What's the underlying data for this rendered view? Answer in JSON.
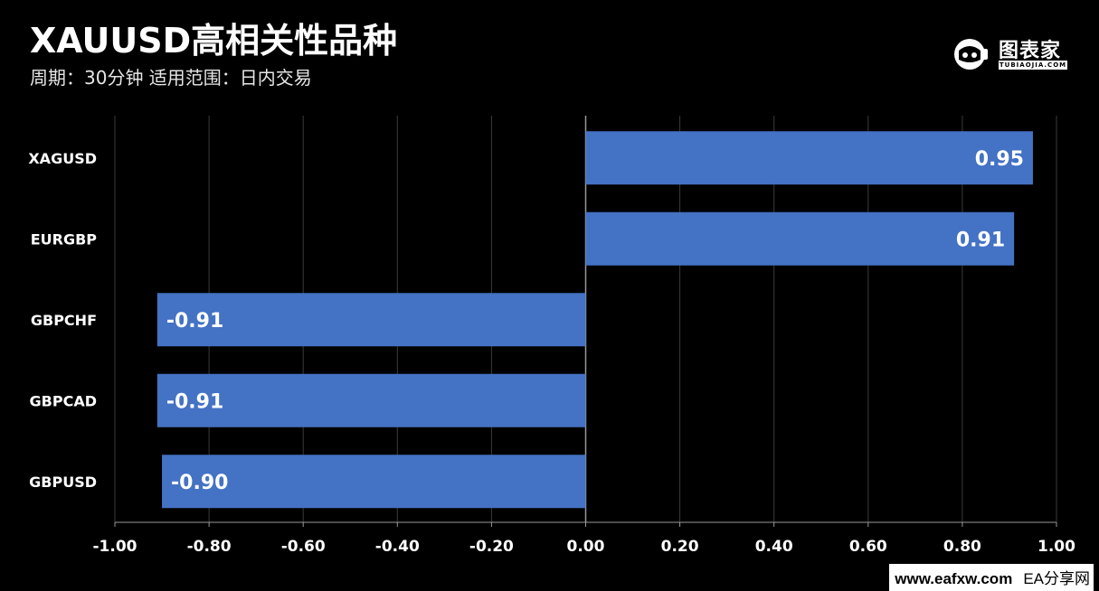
{
  "header": {
    "title": "XAUUSD高相关性品种",
    "subtitle": "周期：30分钟  适用范围：日内交易"
  },
  "logo": {
    "name": "图表家",
    "sub": "TUBIAOJIA.COM",
    "icon": "astronaut-icon"
  },
  "footer": {
    "site": "www.eafxw.com",
    "brand": "EA分享网"
  },
  "colors": {
    "background": "#000000",
    "bar": "#4472c4",
    "grid": "#3a3a3a",
    "axis": "#999999",
    "text": "#ffffff"
  },
  "chart_data": {
    "type": "bar",
    "orientation": "horizontal",
    "categories": [
      "XAGUSD",
      "EURGBP",
      "GBPCHF",
      "GBPCAD",
      "GBPUSD"
    ],
    "values": [
      0.95,
      0.91,
      -0.91,
      -0.91,
      -0.9
    ],
    "value_labels": [
      "0.95",
      "0.91",
      "-0.91",
      "-0.91",
      "-0.90"
    ],
    "xlim": [
      -1.0,
      1.0
    ],
    "xticks": [
      -1.0,
      -0.8,
      -0.6,
      -0.4,
      -0.2,
      0.0,
      0.2,
      0.4,
      0.6,
      0.8,
      1.0
    ],
    "xtick_labels": [
      "-1.00",
      "-0.80",
      "-0.60",
      "-0.40",
      "-0.20",
      "0.00",
      "0.20",
      "0.40",
      "0.60",
      "0.80",
      "1.00"
    ],
    "grid": true,
    "legend": "none"
  }
}
